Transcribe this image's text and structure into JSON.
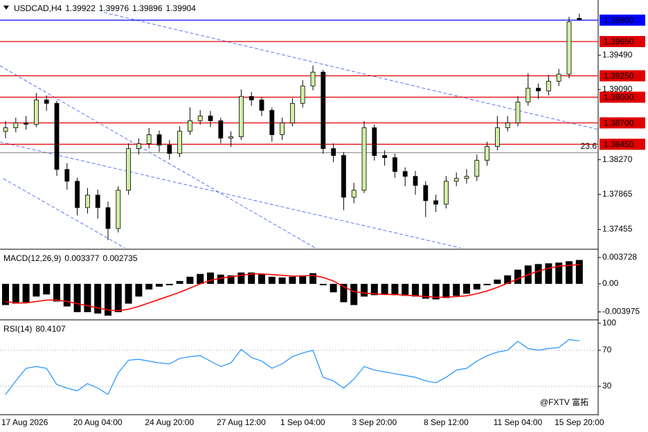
{
  "chart_data": [
    {
      "type": "candlestick",
      "title": "USDCAD,H4",
      "x": [
        "17 Aug 2026",
        null,
        null,
        null,
        null,
        null,
        null,
        null,
        null,
        "20 Aug 04:00",
        null,
        null,
        null,
        null,
        null,
        null,
        "24 Aug 20:00",
        null,
        null,
        null,
        null,
        null,
        null,
        "27 Aug 12:00",
        null,
        null,
        null,
        null,
        null,
        "1 Sep 04:00",
        null,
        null,
        null,
        null,
        null,
        null,
        "3 Sep 20:00",
        null,
        null,
        null,
        null,
        null,
        null,
        "8 Sep 12:00",
        null,
        null,
        null,
        null,
        null,
        null,
        "11 Sep 04:00",
        null,
        null,
        null,
        null,
        null,
        "15 Sep 20:00"
      ],
      "open": [
        1.386,
        1.38643,
        1.387,
        1.38684,
        1.38968,
        1.38928,
        1.38156,
        1.38018,
        1.3771,
        1.37856,
        1.3771,
        1.37466,
        1.37913,
        1.384,
        1.38457,
        1.38562,
        1.3844,
        1.38343,
        1.38603,
        1.38725,
        1.38781,
        1.38725,
        1.38522,
        1.38538,
        1.39009,
        1.38968,
        1.38846,
        1.38562,
        1.387,
        1.38928,
        1.39131,
        1.39293,
        1.384,
        1.38319,
        1.37831,
        1.37913,
        1.38643,
        1.38319,
        1.38294,
        1.38132,
        1.38075,
        1.37969,
        1.37791,
        1.3775,
        1.38018,
        1.38051,
        1.38075,
        1.38262,
        1.38424,
        1.38643,
        1.387,
        1.38944,
        1.39106,
        1.39074,
        1.39187,
        1.39269,
        1.39922
      ],
      "high": [
        1.3872,
        1.3876,
        1.3878,
        1.3905,
        1.3902,
        1.3896,
        1.3823,
        1.3806,
        1.3794,
        1.3792,
        1.3778,
        1.3796,
        1.3846,
        1.3852,
        1.3864,
        1.3861,
        1.385,
        1.3866,
        1.3888,
        1.3885,
        1.3884,
        1.3876,
        1.386,
        1.3909,
        1.3906,
        1.39,
        1.3888,
        1.3876,
        1.3899,
        1.392,
        1.3937,
        1.3932,
        1.3846,
        1.3836,
        1.38,
        1.3872,
        1.3868,
        1.3838,
        1.3834,
        1.3818,
        1.3814,
        1.3802,
        1.3786,
        1.3808,
        1.3812,
        1.3816,
        1.3833,
        1.3848,
        1.3878,
        1.3878,
        1.3901,
        1.3928,
        1.3916,
        1.3926,
        1.3933,
        1.3994,
        1.39976
      ],
      "low": [
        1.3852,
        1.3859,
        1.3862,
        1.3865,
        1.3884,
        1.3808,
        1.3792,
        1.3762,
        1.3764,
        1.3758,
        1.3733,
        1.3742,
        1.3786,
        1.3833,
        1.384,
        1.3836,
        1.3827,
        1.383,
        1.3856,
        1.3868,
        1.3865,
        1.3846,
        1.3842,
        1.385,
        1.389,
        1.3878,
        1.3848,
        1.385,
        1.3866,
        1.3888,
        1.3908,
        1.3834,
        1.3824,
        1.3768,
        1.3776,
        1.3788,
        1.3826,
        1.382,
        1.3806,
        1.3796,
        1.3786,
        1.376,
        1.3766,
        1.377,
        1.3796,
        1.3799,
        1.3802,
        1.382,
        1.3838,
        1.386,
        1.3866,
        1.389,
        1.3898,
        1.3902,
        1.3913,
        1.3922,
        1.39896
      ],
      "close": [
        1.38643,
        1.387,
        1.38684,
        1.38968,
        1.38928,
        1.38156,
        1.38018,
        1.3771,
        1.37856,
        1.3771,
        1.37466,
        1.37913,
        1.384,
        1.38457,
        1.38562,
        1.3844,
        1.38343,
        1.38603,
        1.38725,
        1.38781,
        1.38725,
        1.38522,
        1.38538,
        1.39009,
        1.38968,
        1.38846,
        1.38562,
        1.387,
        1.38928,
        1.39131,
        1.39293,
        1.384,
        1.38319,
        1.37831,
        1.37913,
        1.38643,
        1.38319,
        1.38294,
        1.38132,
        1.38075,
        1.37969,
        1.37791,
        1.3775,
        1.38018,
        1.38051,
        1.38075,
        1.38262,
        1.38424,
        1.38643,
        1.387,
        1.38944,
        1.39106,
        1.39074,
        1.39187,
        1.39269,
        1.3988,
        1.39904
      ],
      "up_color": "#d2efa6",
      "down_color": "#000000",
      "ylim": [
        1.3724,
        1.3999
      ],
      "yticks": [
        {
          "value": 1.3949,
          "label": "1.39490"
        },
        {
          "value": 1.3909,
          "label": "1.39090"
        },
        {
          "value": 1.3827,
          "label": "1.38270"
        },
        1.37865,
        1.37455
      ],
      "levels": [
        {
          "value": 1.399,
          "label": "1.39900",
          "color": "#0000ff"
        },
        {
          "value": 1.3965,
          "label": "1.39650",
          "color": "#e00000"
        },
        {
          "value": 1.3925,
          "label": "1.39250",
          "color": "#e00000"
        },
        {
          "value": 1.39,
          "label": "1.39000",
          "color": "#e00000"
        },
        {
          "value": 1.387,
          "label": "1.38700",
          "color": "#e00000"
        },
        {
          "value": 1.3845,
          "label": "1.38450",
          "color": "#e00000"
        }
      ],
      "fib": {
        "label": "23.6",
        "value": 1.38351,
        "color": "#808080"
      },
      "watermark": "@FXTV 富拓"
    },
    {
      "type": "bar",
      "title": "MACD(12,26,9)",
      "series": [
        {
          "kind": "histogram",
          "color": "#000000",
          "values": [
            -0.003,
            -0.0028,
            -0.0026,
            -0.0018,
            -0.0015,
            -0.0025,
            -0.0032,
            -0.004,
            -0.004,
            -0.0042,
            -0.0045,
            -0.004,
            -0.0028,
            -0.0018,
            -0.0008,
            -0.0004,
            -0.0002,
            0.0004,
            0.001,
            0.0014,
            0.0016,
            0.0013,
            0.0012,
            0.0016,
            0.0016,
            0.0014,
            0.001,
            0.0009,
            0.001,
            0.0012,
            0.0015,
            -0.0002,
            -0.0012,
            -0.0026,
            -0.003,
            -0.0018,
            -0.0016,
            -0.0015,
            -0.0016,
            -0.0017,
            -0.0018,
            -0.0021,
            -0.0022,
            -0.002,
            -0.0017,
            -0.0014,
            -0.0008,
            -0.0002,
            0.0006,
            0.0012,
            0.002,
            0.0026,
            0.0028,
            0.0029,
            0.003,
            0.0032,
            0.003377
          ]
        },
        {
          "kind": "line",
          "color": "#ff0000",
          "values": [
            -0.0025,
            -0.0027,
            -0.0027,
            -0.0025,
            -0.0023,
            -0.0023,
            -0.0025,
            -0.0028,
            -0.0031,
            -0.0034,
            -0.0037,
            -0.0038,
            -0.0036,
            -0.0032,
            -0.0027,
            -0.0022,
            -0.0017,
            -0.0012,
            -0.0006,
            0.0,
            0.0005,
            0.0008,
            0.001,
            0.0012,
            0.0014,
            0.0014,
            0.0013,
            0.0012,
            0.0011,
            0.0011,
            0.0012,
            0.0009,
            0.0004,
            -0.0004,
            -0.0011,
            -0.0013,
            -0.0014,
            -0.0015,
            -0.0015,
            -0.0016,
            -0.0017,
            -0.0018,
            -0.0019,
            -0.0019,
            -0.0018,
            -0.0017,
            -0.0014,
            -0.001,
            -0.0005,
            0.0001,
            0.0007,
            0.0013,
            0.0018,
            0.0022,
            0.0025,
            0.0026,
            0.002735
          ]
        }
      ],
      "ylim": [
        -0.0049,
        0.0047
      ],
      "yticks": [
        0.003728,
        {
          "value": 0,
          "label": "0.00"
        },
        -0.003975
      ]
    },
    {
      "type": "line",
      "title": "RSI(14)",
      "color": "#1e90ff",
      "values": [
        21,
        36,
        50,
        52,
        50,
        32,
        28,
        25,
        33,
        28,
        21,
        45,
        59,
        60,
        58,
        56,
        55,
        61,
        63,
        64,
        58,
        52,
        56,
        71,
        62,
        58,
        50,
        55,
        63,
        67,
        70,
        40,
        36,
        28,
        38,
        52,
        48,
        46,
        44,
        42,
        40,
        36,
        34,
        40,
        48,
        50,
        58,
        64,
        68,
        70,
        80,
        72,
        70,
        72,
        73,
        82,
        80.4107
      ],
      "ylim": [
        0,
        100
      ],
      "yticks": [
        100,
        70,
        30
      ],
      "levels": [
        70,
        30
      ]
    }
  ]
}
